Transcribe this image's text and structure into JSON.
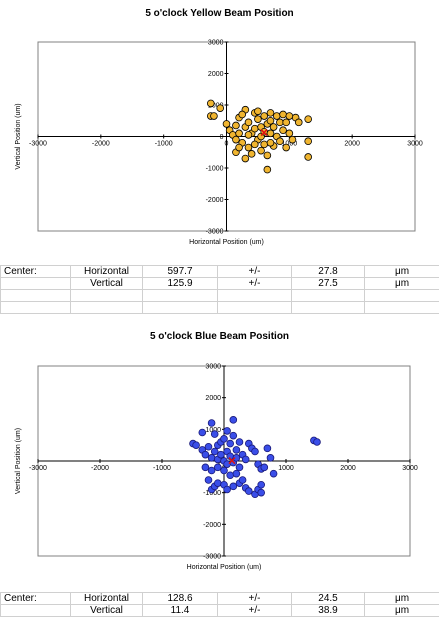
{
  "yellow": {
    "title": "5 o'clock Yellow   Beam Position",
    "center_label": "Center:",
    "rows": [
      {
        "dir": "Horizontal",
        "value": "597.7",
        "pm": "+/-",
        "err": "27.8",
        "unit": "μm"
      },
      {
        "dir": "Vertical",
        "value": "125.9",
        "pm": "+/-",
        "err": "27.5",
        "unit": "μm"
      }
    ]
  },
  "blue": {
    "title": "5 o'clock Blue   Beam Position",
    "center_label": "Center:",
    "rows": [
      {
        "dir": "Horizontal",
        "value": "128.6",
        "pm": "+/-",
        "err": "24.5",
        "unit": "μm"
      },
      {
        "dir": "Vertical",
        "value": "11.4",
        "pm": "+/-",
        "err": "38.9",
        "unit": "μm"
      }
    ]
  },
  "chart_data": [
    {
      "type": "scatter",
      "title": "5 o'clock Yellow   Beam Position",
      "xlabel": "Horizontal Position  (um)",
      "ylabel": "Vertical Position  (um)",
      "xlim": [
        -3000,
        3000
      ],
      "ylim": [
        -3000,
        3000
      ],
      "xticks": [
        "-3000",
        "-2000",
        "-1000",
        "0",
        "1000",
        "2000",
        "3000"
      ],
      "yticks": [
        "3000",
        "2000",
        "1000",
        "0",
        "-1000",
        "-2000",
        "-3000"
      ],
      "grid": false,
      "colors": {
        "point": "#f0b530",
        "edge": "#000000",
        "center": "#e01010"
      },
      "center": {
        "x": 597.7,
        "y": 125.9
      },
      "points": [
        [
          -250,
          1050
        ],
        [
          -250,
          650
        ],
        [
          -200,
          650
        ],
        [
          -100,
          900
        ],
        [
          0,
          400
        ],
        [
          50,
          200
        ],
        [
          100,
          50
        ],
        [
          150,
          350
        ],
        [
          150,
          -100
        ],
        [
          150,
          -500
        ],
        [
          200,
          600
        ],
        [
          200,
          100
        ],
        [
          250,
          -200
        ],
        [
          300,
          850
        ],
        [
          300,
          300
        ],
        [
          350,
          450
        ],
        [
          350,
          -350
        ],
        [
          400,
          100
        ],
        [
          400,
          -550
        ],
        [
          450,
          750
        ],
        [
          450,
          250
        ],
        [
          500,
          -100
        ],
        [
          500,
          550
        ],
        [
          550,
          300
        ],
        [
          550,
          0
        ],
        [
          550,
          -450
        ],
        [
          600,
          650
        ],
        [
          600,
          150
        ],
        [
          600,
          -250
        ],
        [
          650,
          400
        ],
        [
          650,
          -1050
        ],
        [
          700,
          750
        ],
        [
          700,
          500
        ],
        [
          700,
          100
        ],
        [
          750,
          -300
        ],
        [
          750,
          300
        ],
        [
          800,
          650
        ],
        [
          800,
          0
        ],
        [
          850,
          450
        ],
        [
          850,
          -150
        ],
        [
          900,
          700
        ],
        [
          900,
          200
        ],
        [
          950,
          -350
        ],
        [
          950,
          450
        ],
        [
          1000,
          100
        ],
        [
          1050,
          -100
        ],
        [
          1100,
          600
        ],
        [
          1150,
          450
        ],
        [
          1300,
          550
        ],
        [
          1300,
          -150
        ],
        [
          1300,
          -650
        ],
        [
          300,
          -700
        ],
        [
          250,
          700
        ],
        [
          450,
          -250
        ],
        [
          500,
          800
        ],
        [
          200,
          -350
        ],
        [
          350,
          50
        ],
        [
          650,
          -600
        ],
        [
          700,
          -200
        ],
        [
          1000,
          650
        ]
      ]
    },
    {
      "type": "scatter",
      "title": "5 o'clock Blue   Beam Position",
      "xlabel": "Horizontal Position  (um)",
      "ylabel": "Vertical Position  (um)",
      "xlim": [
        -3000,
        3000
      ],
      "ylim": [
        -3000,
        3000
      ],
      "xticks": [
        "-3000",
        "-2000",
        "-1000",
        "0",
        "1000",
        "2000",
        "3000"
      ],
      "yticks": [
        "3000",
        "2000",
        "1000",
        "0",
        "-1000",
        "-2000",
        "-3000"
      ],
      "grid": false,
      "colors": {
        "point": "#3a4ee8",
        "edge": "#1a1a7a",
        "center": "#e01010"
      },
      "center": {
        "x": 128.6,
        "y": 11.4
      },
      "points": [
        [
          -200,
          1200
        ],
        [
          -150,
          850
        ],
        [
          -100,
          500
        ],
        [
          -50,
          600
        ],
        [
          0,
          700
        ],
        [
          50,
          300
        ],
        [
          100,
          550
        ],
        [
          150,
          800
        ],
        [
          200,
          350
        ],
        [
          150,
          1300
        ],
        [
          -500,
          550
        ],
        [
          -450,
          500
        ],
        [
          -350,
          350
        ],
        [
          -300,
          200
        ],
        [
          -250,
          450
        ],
        [
          -200,
          100
        ],
        [
          -150,
          300
        ],
        [
          -100,
          50
        ],
        [
          -50,
          200
        ],
        [
          0,
          0
        ],
        [
          50,
          -100
        ],
        [
          100,
          150
        ],
        [
          150,
          -50
        ],
        [
          200,
          100
        ],
        [
          250,
          -200
        ],
        [
          300,
          200
        ],
        [
          350,
          50
        ],
        [
          400,
          550
        ],
        [
          450,
          400
        ],
        [
          500,
          300
        ],
        [
          550,
          -100
        ],
        [
          600,
          -250
        ],
        [
          650,
          -200
        ],
        [
          700,
          400
        ],
        [
          750,
          100
        ],
        [
          -250,
          -600
        ],
        [
          -200,
          -900
        ],
        [
          -150,
          -800
        ],
        [
          -100,
          -700
        ],
        [
          0,
          -750
        ],
        [
          50,
          -900
        ],
        [
          150,
          -800
        ],
        [
          250,
          -700
        ],
        [
          300,
          -600
        ],
        [
          350,
          -850
        ],
        [
          400,
          -950
        ],
        [
          500,
          -1050
        ],
        [
          550,
          -900
        ],
        [
          600,
          -1000
        ],
        [
          600,
          -750
        ],
        [
          800,
          -400
        ],
        [
          -300,
          -200
        ],
        [
          -200,
          -300
        ],
        [
          -100,
          -200
        ],
        [
          0,
          -300
        ],
        [
          100,
          -450
        ],
        [
          200,
          -400
        ],
        [
          1450,
          650
        ],
        [
          1500,
          600
        ],
        [
          -350,
          900
        ],
        [
          50,
          950
        ],
        [
          250,
          600
        ]
      ]
    }
  ]
}
